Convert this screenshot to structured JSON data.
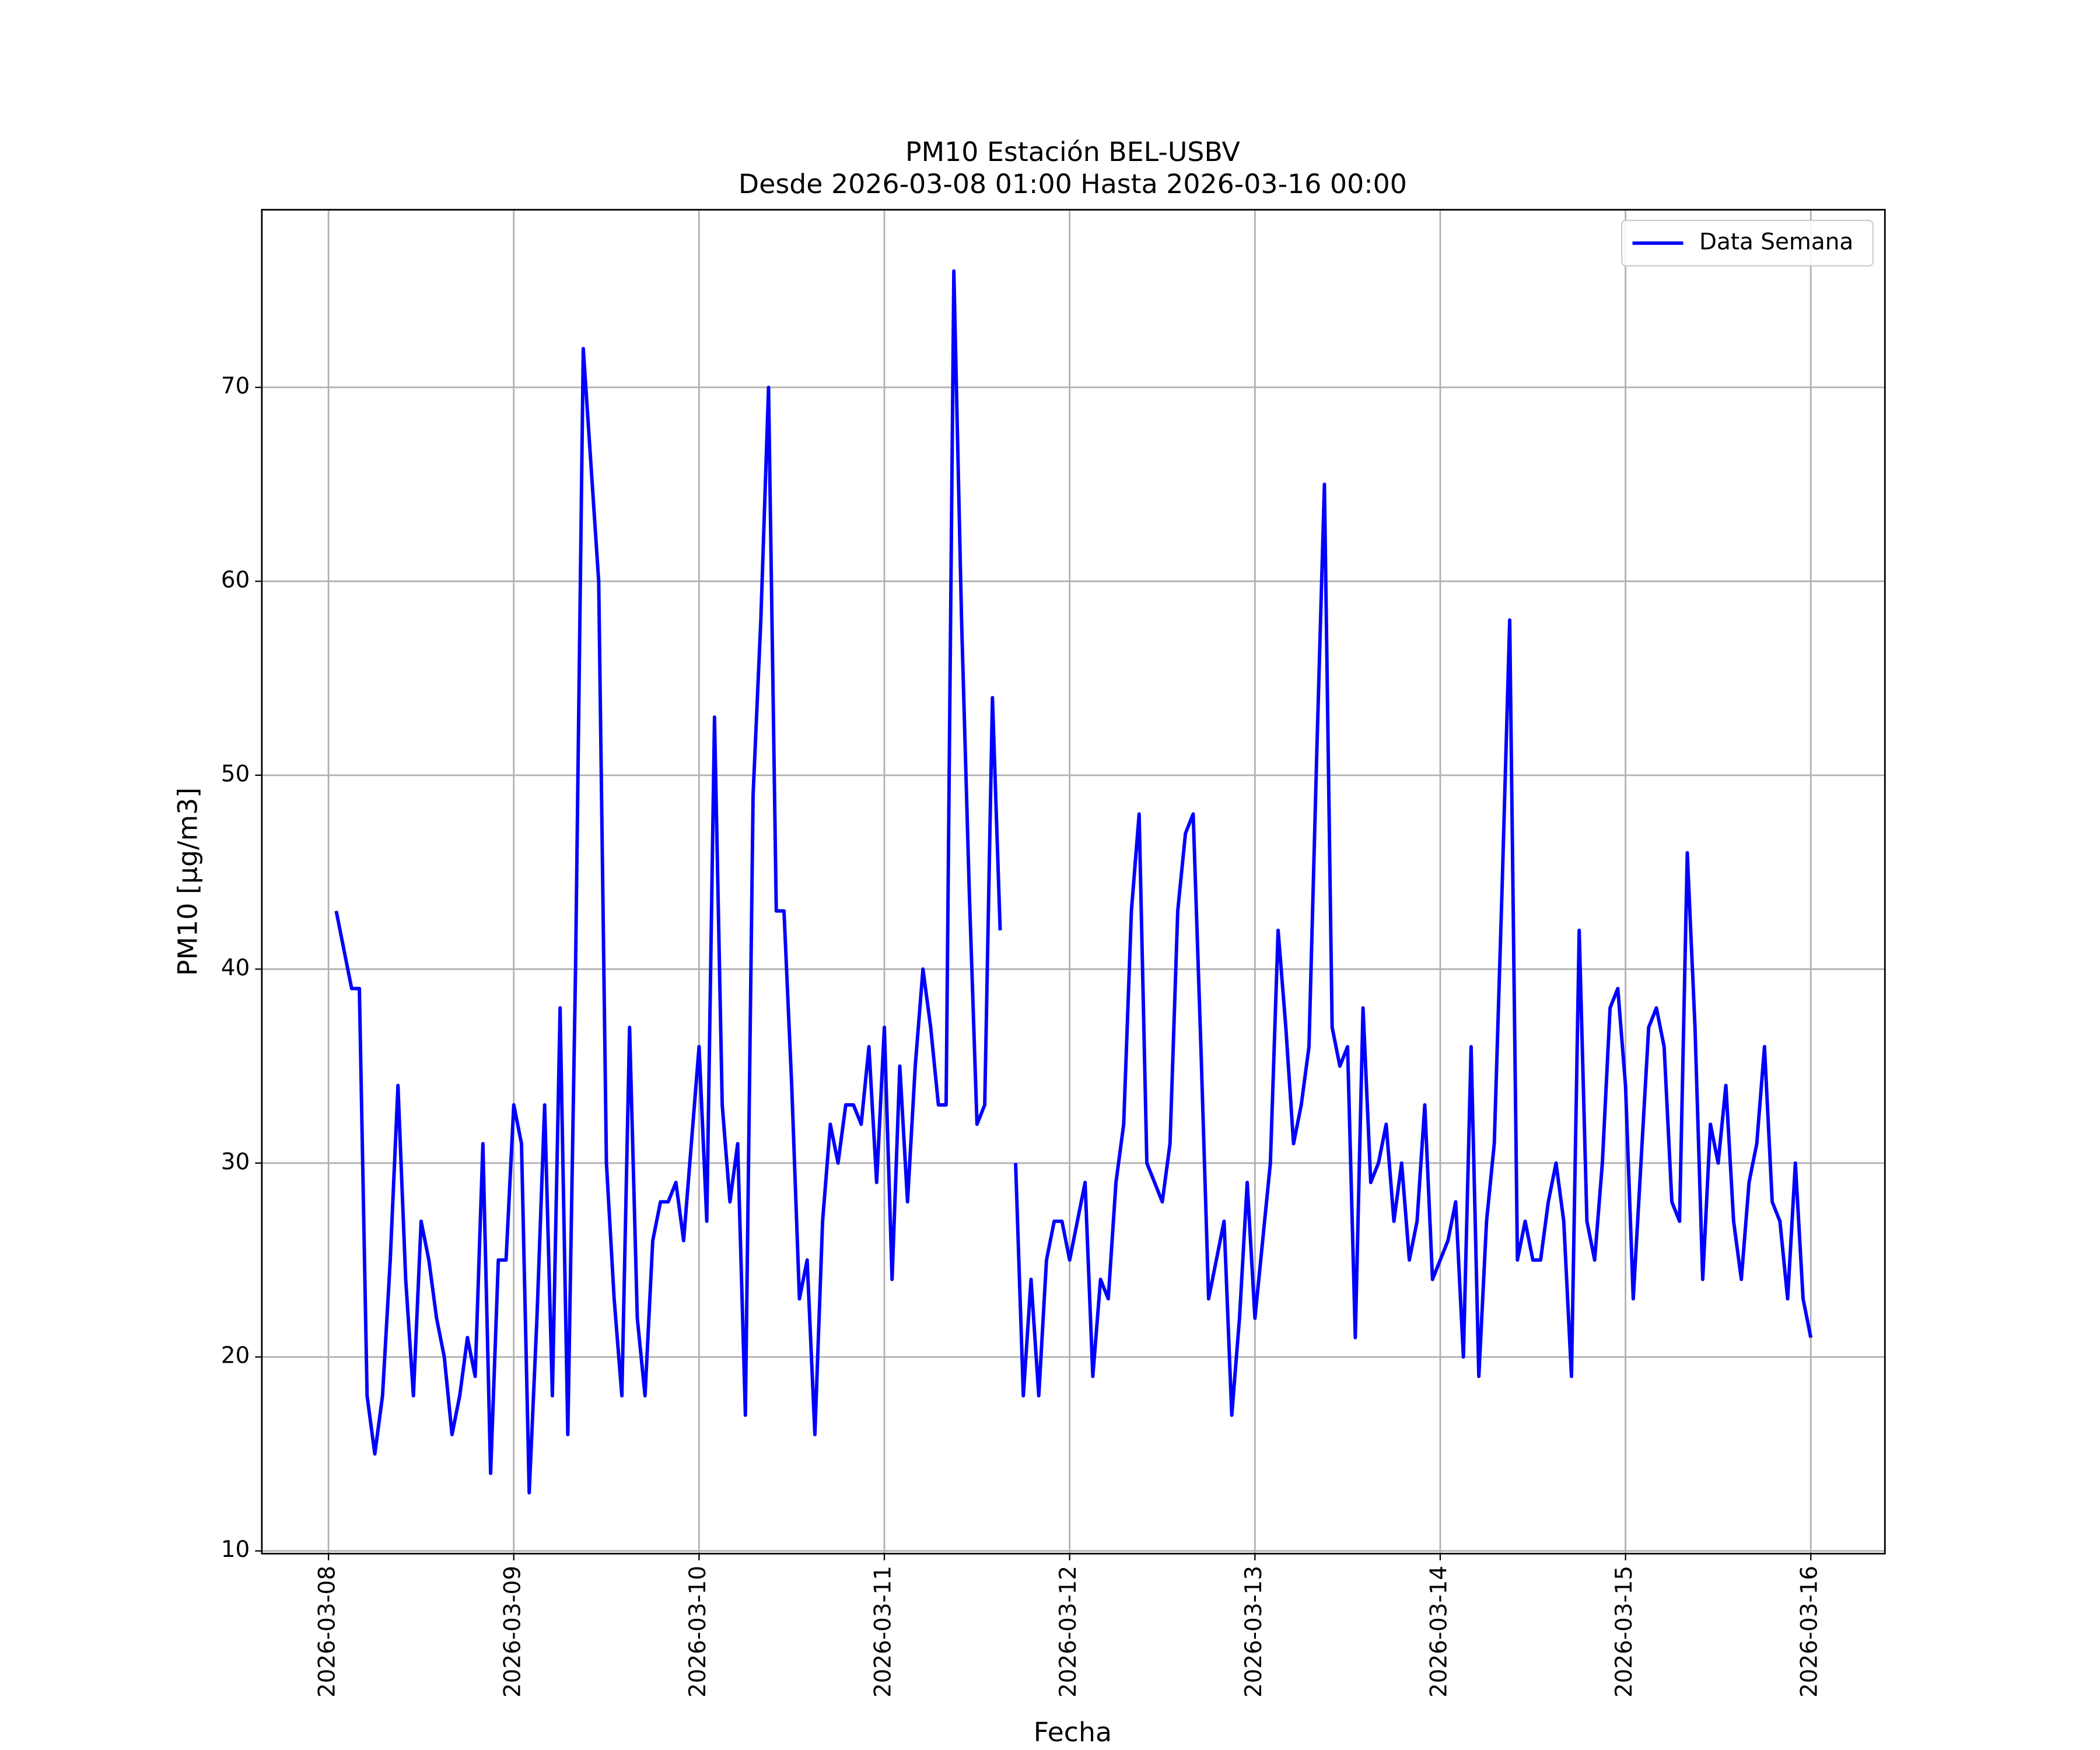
{
  "chart_data": {
    "type": "line",
    "title": "PM10 Estación BEL-USBV",
    "subtitle": "Desde 2026-03-08 01:00 Hasta 2026-03-16 00:00",
    "x_label": "Fecha",
    "y_label": "PM10 [μg/m3]",
    "x": [
      "2026-03-08 01:00",
      "2026-03-08 02:00",
      "2026-03-08 03:00",
      "2026-03-08 04:00",
      "2026-03-08 05:00",
      "2026-03-08 06:00",
      "2026-03-08 07:00",
      "2026-03-08 08:00",
      "2026-03-08 09:00",
      "2026-03-08 10:00",
      "2026-03-08 11:00",
      "2026-03-08 12:00",
      "2026-03-08 13:00",
      "2026-03-08 14:00",
      "2026-03-08 15:00",
      "2026-03-08 16:00",
      "2026-03-08 17:00",
      "2026-03-08 18:00",
      "2026-03-08 19:00",
      "2026-03-08 20:00",
      "2026-03-08 21:00",
      "2026-03-08 22:00",
      "2026-03-08 23:00",
      "2026-03-09 00:00",
      "2026-03-09 01:00",
      "2026-03-09 02:00",
      "2026-03-09 03:00",
      "2026-03-09 04:00",
      "2026-03-09 05:00",
      "2026-03-09 06:00",
      "2026-03-09 07:00",
      "2026-03-09 08:00",
      "2026-03-09 09:00",
      "2026-03-09 10:00",
      "2026-03-09 11:00",
      "2026-03-09 12:00",
      "2026-03-09 13:00",
      "2026-03-09 14:00",
      "2026-03-09 15:00",
      "2026-03-09 16:00",
      "2026-03-09 17:00",
      "2026-03-09 18:00",
      "2026-03-09 19:00",
      "2026-03-09 20:00",
      "2026-03-09 21:00",
      "2026-03-09 22:00",
      "2026-03-09 23:00",
      "2026-03-10 00:00",
      "2026-03-10 01:00",
      "2026-03-10 02:00",
      "2026-03-10 03:00",
      "2026-03-10 04:00",
      "2026-03-10 05:00",
      "2026-03-10 06:00",
      "2026-03-10 07:00",
      "2026-03-10 08:00",
      "2026-03-10 09:00",
      "2026-03-10 10:00",
      "2026-03-10 11:00",
      "2026-03-10 12:00",
      "2026-03-10 13:00",
      "2026-03-10 14:00",
      "2026-03-10 15:00",
      "2026-03-10 16:00",
      "2026-03-10 17:00",
      "2026-03-10 18:00",
      "2026-03-10 19:00",
      "2026-03-10 20:00",
      "2026-03-10 21:00",
      "2026-03-10 22:00",
      "2026-03-10 23:00",
      "2026-03-11 00:00",
      "2026-03-11 01:00",
      "2026-03-11 02:00",
      "2026-03-11 03:00",
      "2026-03-11 04:00",
      "2026-03-11 05:00",
      "2026-03-11 06:00",
      "2026-03-11 07:00",
      "2026-03-11 08:00",
      "2026-03-11 09:00",
      "2026-03-11 10:00",
      "2026-03-11 11:00",
      "2026-03-11 12:00",
      "2026-03-11 13:00",
      "2026-03-11 14:00",
      "2026-03-11 15:00",
      "2026-03-11 16:00",
      "2026-03-11 17:00",
      "2026-03-11 18:00",
      "2026-03-11 19:00",
      "2026-03-11 20:00",
      "2026-03-11 21:00",
      "2026-03-11 22:00",
      "2026-03-11 23:00",
      "2026-03-12 00:00",
      "2026-03-12 01:00",
      "2026-03-12 02:00",
      "2026-03-12 03:00",
      "2026-03-12 04:00",
      "2026-03-12 05:00",
      "2026-03-12 06:00",
      "2026-03-12 07:00",
      "2026-03-12 08:00",
      "2026-03-12 09:00",
      "2026-03-12 10:00",
      "2026-03-12 11:00",
      "2026-03-12 12:00",
      "2026-03-12 13:00",
      "2026-03-12 14:00",
      "2026-03-12 15:00",
      "2026-03-12 16:00",
      "2026-03-12 17:00",
      "2026-03-12 18:00",
      "2026-03-12 19:00",
      "2026-03-12 20:00",
      "2026-03-12 21:00",
      "2026-03-12 22:00",
      "2026-03-12 23:00",
      "2026-03-13 00:00",
      "2026-03-13 01:00",
      "2026-03-13 02:00",
      "2026-03-13 03:00",
      "2026-03-13 04:00",
      "2026-03-13 05:00",
      "2026-03-13 06:00",
      "2026-03-13 07:00",
      "2026-03-13 08:00",
      "2026-03-13 09:00",
      "2026-03-13 10:00",
      "2026-03-13 11:00",
      "2026-03-13 12:00",
      "2026-03-13 13:00",
      "2026-03-13 14:00",
      "2026-03-13 15:00",
      "2026-03-13 16:00",
      "2026-03-13 17:00",
      "2026-03-13 18:00",
      "2026-03-13 19:00",
      "2026-03-13 20:00",
      "2026-03-13 21:00",
      "2026-03-13 22:00",
      "2026-03-13 23:00",
      "2026-03-14 00:00",
      "2026-03-14 01:00",
      "2026-03-14 02:00",
      "2026-03-14 03:00",
      "2026-03-14 04:00",
      "2026-03-14 05:00",
      "2026-03-14 06:00",
      "2026-03-14 07:00",
      "2026-03-14 08:00",
      "2026-03-14 09:00",
      "2026-03-14 10:00",
      "2026-03-14 11:00",
      "2026-03-14 12:00",
      "2026-03-14 13:00",
      "2026-03-14 14:00",
      "2026-03-14 15:00",
      "2026-03-14 16:00",
      "2026-03-14 17:00",
      "2026-03-14 18:00",
      "2026-03-14 19:00",
      "2026-03-14 20:00",
      "2026-03-14 21:00",
      "2026-03-14 22:00",
      "2026-03-14 23:00",
      "2026-03-15 00:00",
      "2026-03-15 01:00",
      "2026-03-15 02:00",
      "2026-03-15 03:00",
      "2026-03-15 04:00",
      "2026-03-15 05:00",
      "2026-03-15 06:00",
      "2026-03-15 07:00",
      "2026-03-15 08:00",
      "2026-03-15 09:00",
      "2026-03-15 10:00",
      "2026-03-15 11:00",
      "2026-03-15 12:00",
      "2026-03-15 13:00",
      "2026-03-15 14:00",
      "2026-03-15 15:00",
      "2026-03-15 16:00",
      "2026-03-15 17:00",
      "2026-03-15 18:00",
      "2026-03-15 19:00",
      "2026-03-15 20:00",
      "2026-03-15 21:00",
      "2026-03-15 22:00",
      "2026-03-15 23:00",
      "2026-03-16 00:00"
    ],
    "series": [
      {
        "name": "Data Semana",
        "color": "#0000ff",
        "values": [
          43,
          41,
          39,
          39,
          18,
          15,
          18,
          25,
          34,
          24,
          18,
          27,
          25,
          22,
          20,
          16,
          18,
          21,
          19,
          31,
          14,
          25,
          25,
          33,
          31,
          13,
          22,
          33,
          18,
          38,
          16,
          40,
          72,
          66,
          60,
          30,
          23,
          18,
          37,
          22,
          18,
          26,
          28,
          28,
          29,
          26,
          31,
          36,
          27,
          53,
          33,
          28,
          31,
          17,
          49,
          58,
          70,
          43,
          43,
          34,
          23,
          25,
          16,
          27,
          32,
          30,
          33,
          33,
          32,
          36,
          29,
          37,
          24,
          35,
          28,
          35,
          40,
          37,
          33,
          33,
          76,
          58,
          44,
          32,
          33,
          54,
          42,
          null,
          30,
          18,
          24,
          18,
          25,
          27,
          27,
          25,
          27,
          29,
          19,
          24,
          23,
          29,
          32,
          43,
          48,
          30,
          29,
          28,
          31,
          43,
          47,
          48,
          36,
          23,
          25,
          27,
          17,
          22,
          29,
          22,
          26,
          30,
          42,
          37,
          31,
          33,
          36,
          51,
          65,
          37,
          35,
          36,
          21,
          38,
          29,
          30,
          32,
          27,
          30,
          25,
          27,
          33,
          24,
          25,
          26,
          28,
          20,
          36,
          19,
          27,
          31,
          44,
          58,
          25,
          27,
          25,
          25,
          28,
          30,
          27,
          19,
          42,
          27,
          25,
          30,
          38,
          39,
          34,
          23,
          30,
          37,
          38,
          36,
          28,
          27,
          46,
          37,
          24,
          32,
          30,
          34,
          27,
          24,
          29,
          31,
          36,
          28,
          27,
          23,
          30,
          23,
          21
        ]
      }
    ],
    "xlim": [
      "2026-03-07 15:22",
      "2026-03-16 09:36"
    ],
    "xticks": [
      "2026-03-08",
      "2026-03-09",
      "2026-03-10",
      "2026-03-11",
      "2026-03-12",
      "2026-03-13",
      "2026-03-14",
      "2026-03-15",
      "2026-03-16"
    ],
    "ylim": [
      9.86,
      79.16
    ],
    "yticks": [
      10,
      20,
      30,
      40,
      50,
      60,
      70
    ],
    "grid": true,
    "legend": "upper right"
  }
}
